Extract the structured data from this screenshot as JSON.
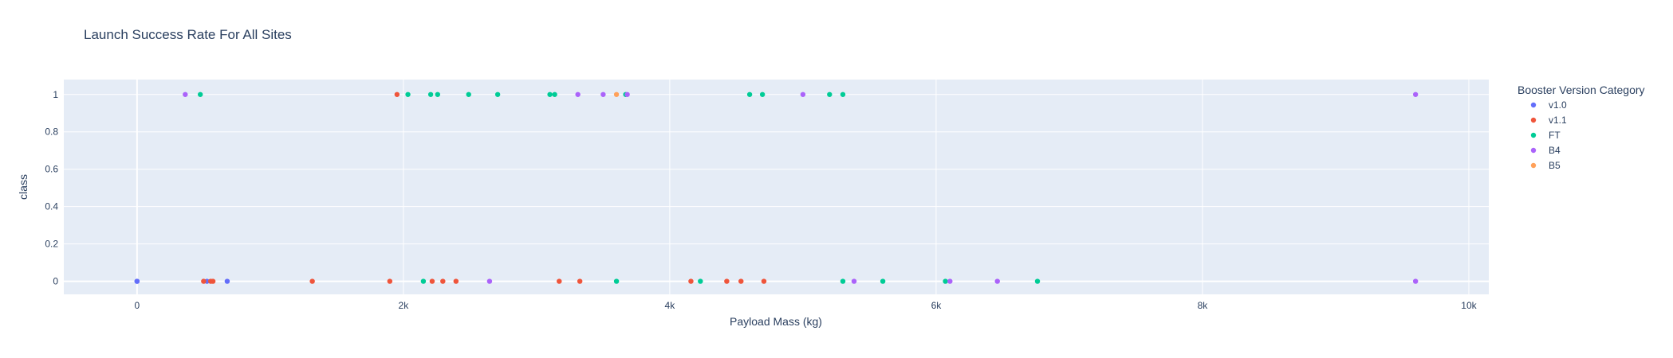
{
  "chart_data": {
    "type": "scatter",
    "title": "Launch Success Rate For All Sites",
    "xlabel": "Payload Mass (kg)",
    "ylabel": "class",
    "xlim": [
      -550,
      10150
    ],
    "ylim": [
      -0.07,
      1.08
    ],
    "x_ticks": [
      0,
      2000,
      4000,
      6000,
      8000,
      10000
    ],
    "x_tick_labels": [
      "0",
      "2k",
      "4k",
      "6k",
      "8k",
      "10k"
    ],
    "y_ticks": [
      0,
      0.2,
      0.4,
      0.6,
      0.8,
      1
    ],
    "y_tick_labels": [
      "0",
      "0.2",
      "0.4",
      "0.6",
      "0.8",
      "1"
    ],
    "grid": true,
    "background": "#e5ecf6",
    "legend": {
      "title": "Booster Version Category",
      "position": "right"
    },
    "series": [
      {
        "name": "v1.0",
        "color": "#636efa",
        "points": [
          [
            0,
            0
          ],
          [
            0,
            0
          ],
          [
            525,
            0
          ],
          [
            677,
            0
          ]
        ]
      },
      {
        "name": "v1.1",
        "color": "#ef553b",
        "points": [
          [
            500,
            0
          ],
          [
            553,
            0
          ],
          [
            570,
            0
          ],
          [
            1316,
            0
          ],
          [
            1898,
            0
          ],
          [
            1952,
            1
          ],
          [
            2216,
            0
          ],
          [
            2296,
            0
          ],
          [
            2395,
            0
          ],
          [
            3170,
            0
          ],
          [
            3325,
            0
          ],
          [
            4159,
            0
          ],
          [
            4428,
            0
          ],
          [
            4535,
            0
          ],
          [
            4707,
            0
          ]
        ]
      },
      {
        "name": "FT",
        "color": "#00cc96",
        "points": [
          [
            475,
            1
          ],
          [
            2034,
            1
          ],
          [
            2150,
            0
          ],
          [
            2205,
            1
          ],
          [
            2257,
            1
          ],
          [
            2490,
            1
          ],
          [
            2708,
            1
          ],
          [
            3100,
            1
          ],
          [
            3136,
            1
          ],
          [
            3600,
            0
          ],
          [
            3669,
            1
          ],
          [
            4230,
            0
          ],
          [
            4600,
            1
          ],
          [
            4696,
            1
          ],
          [
            5200,
            1
          ],
          [
            5300,
            0
          ],
          [
            5300,
            1
          ],
          [
            5600,
            0
          ],
          [
            6070,
            0
          ],
          [
            6761,
            0
          ]
        ]
      },
      {
        "name": "B4",
        "color": "#ab63fa",
        "points": [
          [
            362,
            1
          ],
          [
            2647,
            0
          ],
          [
            3310,
            1
          ],
          [
            3500,
            1
          ],
          [
            3681,
            1
          ],
          [
            5000,
            1
          ],
          [
            5384,
            0
          ],
          [
            6104,
            0
          ],
          [
            6460,
            0
          ],
          [
            9600,
            1
          ],
          [
            9600,
            0
          ]
        ]
      },
      {
        "name": "B5",
        "color": "#ffa15a",
        "points": [
          [
            3600,
            1
          ]
        ]
      }
    ]
  }
}
